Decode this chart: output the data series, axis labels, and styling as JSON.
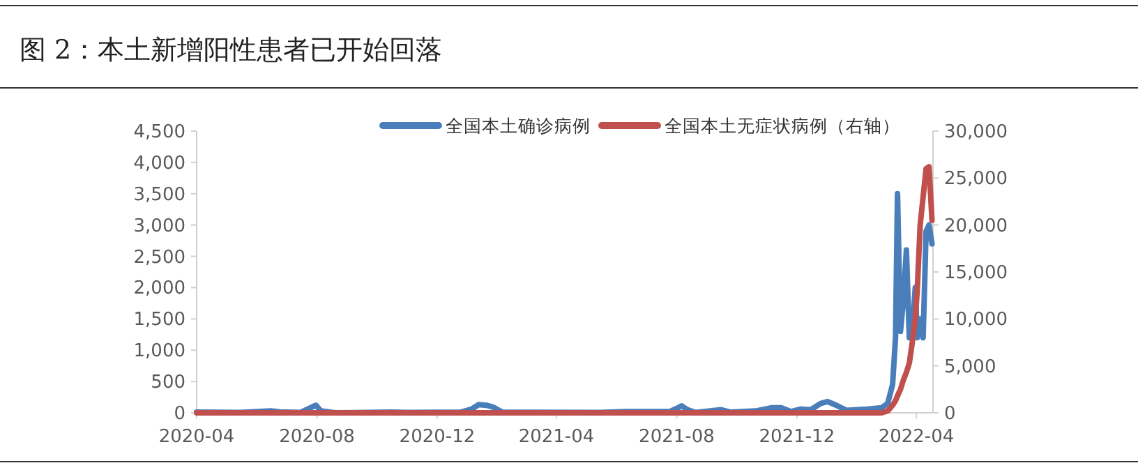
{
  "chart_data": {
    "type": "line",
    "title": "图 2：本土新增阳性患者已开始回落",
    "x": [
      "2020-04-01",
      "2020-05-15",
      "2020-06-15",
      "2020-06-25",
      "2020-07-15",
      "2020-07-28",
      "2020-07-31",
      "2020-08-05",
      "2020-08-20",
      "2020-10-15",
      "2020-11-01",
      "2020-12-25",
      "2021-01-05",
      "2021-01-12",
      "2021-01-20",
      "2021-01-27",
      "2021-02-05",
      "2021-05-15",
      "2021-06-10",
      "2021-07-25",
      "2021-08-01",
      "2021-08-06",
      "2021-08-12",
      "2021-08-20",
      "2021-09-15",
      "2021-09-25",
      "2021-10-20",
      "2021-11-05",
      "2021-11-15",
      "2021-11-25",
      "2021-12-05",
      "2021-12-15",
      "2021-12-25",
      "2022-01-01",
      "2022-01-10",
      "2022-01-20",
      "2022-02-10",
      "2022-02-25",
      "2022-03-03",
      "2022-03-08",
      "2022-03-11",
      "2022-03-13",
      "2022-03-16",
      "2022-03-19",
      "2022-03-22",
      "2022-03-25",
      "2022-03-28",
      "2022-03-31",
      "2022-04-02",
      "2022-04-05",
      "2022-04-08",
      "2022-04-11",
      "2022-04-14",
      "2022-04-17"
    ],
    "series": [
      {
        "name": "全国本土确诊病例",
        "color": "#4a7ebb",
        "values": [
          10,
          5,
          30,
          15,
          5,
          100,
          120,
          30,
          0,
          10,
          5,
          10,
          60,
          130,
          120,
          90,
          10,
          5,
          20,
          20,
          70,
          110,
          50,
          5,
          50,
          10,
          30,
          80,
          80,
          20,
          60,
          50,
          150,
          180,
          120,
          40,
          60,
          80,
          150,
          450,
          1200,
          3500,
          1300,
          1800,
          2600,
          1200,
          1300,
          2000,
          1200,
          1500,
          1200,
          2900,
          3000,
          2700
        ]
      },
      {
        "name": "全国本土无症状病例（右轴）",
        "color": "#c0504d",
        "axis": "y2",
        "values": [
          0,
          0,
          0,
          0,
          0,
          0,
          0,
          0,
          0,
          0,
          0,
          0,
          0,
          0,
          0,
          0,
          0,
          0,
          0,
          0,
          0,
          0,
          0,
          0,
          0,
          0,
          0,
          0,
          0,
          0,
          0,
          0,
          0,
          0,
          0,
          0,
          0,
          0,
          200,
          800,
          1300,
          1800,
          2500,
          3500,
          4300,
          5300,
          7500,
          10000,
          13000,
          20000,
          23000,
          26000,
          26200,
          20500
        ]
      }
    ],
    "xlim": [
      "2020-04-01",
      "2022-04-18"
    ],
    "xticks": [
      "2020-04",
      "2020-08",
      "2020-12",
      "2021-04",
      "2021-08",
      "2021-12",
      "2022-04"
    ],
    "ylim": [
      0,
      4500
    ],
    "yticks": [
      0,
      {
        "value": 500,
        "label": "500"
      },
      {
        "value": 1000,
        "label": "1,000"
      },
      {
        "value": 1500,
        "label": "1,500"
      },
      {
        "value": 2000,
        "label": "2,000"
      },
      {
        "value": 2500,
        "label": "2,500"
      },
      {
        "value": 3000,
        "label": "3,000"
      },
      {
        "value": 3500,
        "label": "3,500"
      },
      {
        "value": 4000,
        "label": "4,000"
      },
      {
        "value": 4500,
        "label": "4,500"
      }
    ],
    "y2lim": [
      0,
      30000
    ],
    "y2ticks": [
      0,
      {
        "value": 5000,
        "label": "5,000"
      },
      {
        "value": 10000,
        "label": "10,000"
      },
      {
        "value": 15000,
        "label": "15,000"
      },
      {
        "value": 20000,
        "label": "20,000"
      },
      {
        "value": 25000,
        "label": "25,000"
      },
      {
        "value": 30000,
        "label": "30,000"
      }
    ],
    "legend": "top",
    "grid": false,
    "marker": "none",
    "line_style": "solid"
  }
}
